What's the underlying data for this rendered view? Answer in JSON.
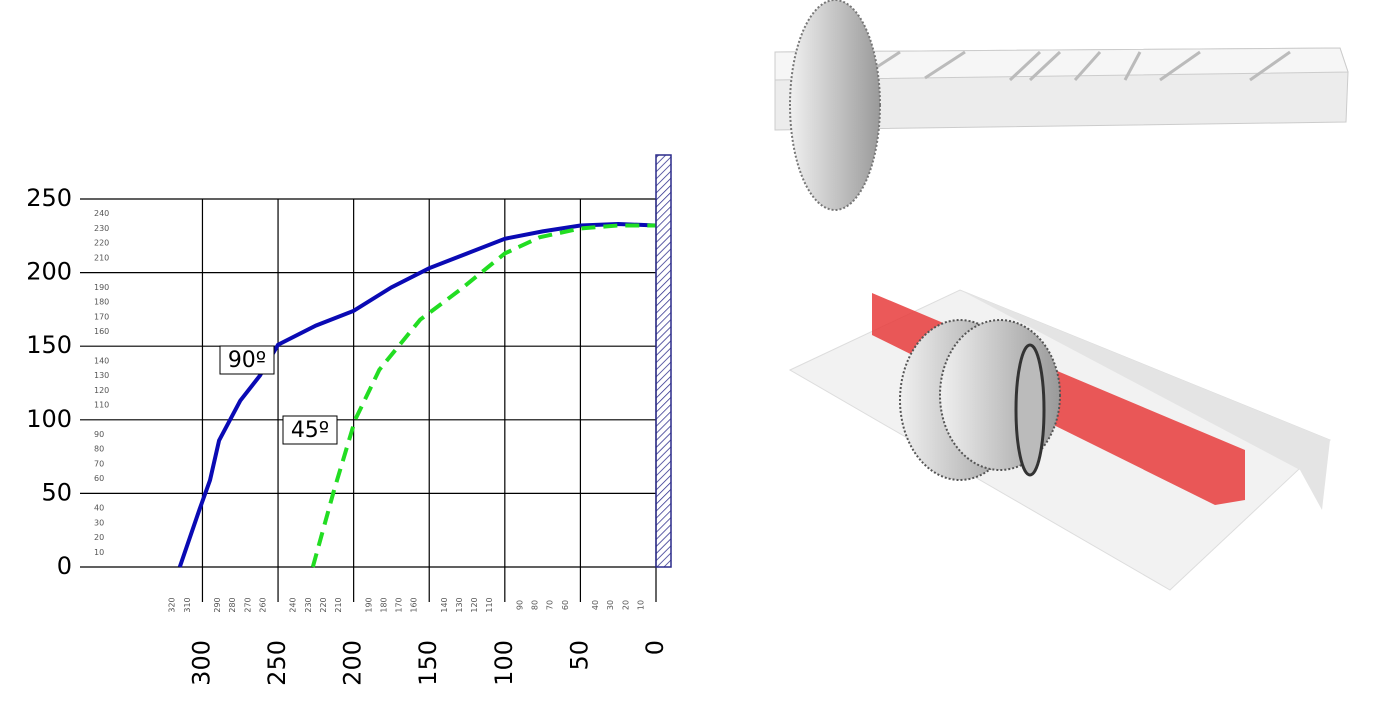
{
  "chart_data": {
    "type": "line",
    "xlim": [
      381,
      0
    ],
    "ylim": [
      0,
      250
    ],
    "xticks": [
      300,
      250,
      200,
      150,
      100,
      50,
      0
    ],
    "yticks": [
      0,
      50,
      100,
      150,
      200,
      250
    ],
    "xminorticks": [
      320,
      310,
      290,
      280,
      270,
      260,
      240,
      230,
      220,
      210,
      190,
      180,
      170,
      160,
      140,
      130,
      120,
      110,
      90,
      80,
      70,
      60,
      40,
      30,
      20,
      10
    ],
    "yminorticks": [
      10,
      20,
      30,
      40,
      60,
      70,
      80,
      90,
      110,
      120,
      130,
      140,
      160,
      170,
      180,
      190,
      210,
      220,
      230,
      240
    ],
    "grid": true,
    "series": [
      {
        "name": "90º",
        "color": "#0a0ab4",
        "dashed": false,
        "x": [
          315,
          302,
          295,
          289,
          275,
          262,
          250,
          225,
          200,
          175,
          150,
          125,
          100,
          75,
          50,
          25,
          0
        ],
        "values": [
          0,
          39,
          59,
          86,
          113,
          130,
          151,
          164,
          174,
          190,
          203,
          213,
          223,
          228,
          232,
          233,
          232
        ]
      },
      {
        "name": "45º",
        "color": "#22dd22",
        "dashed": true,
        "x": [
          227,
          213,
          199,
          183,
          156,
          130,
          100,
          77,
          50,
          25,
          0
        ],
        "values": [
          0,
          52,
          100,
          134,
          168,
          188,
          213,
          224,
          230,
          232,
          232
        ]
      }
    ]
  }
}
